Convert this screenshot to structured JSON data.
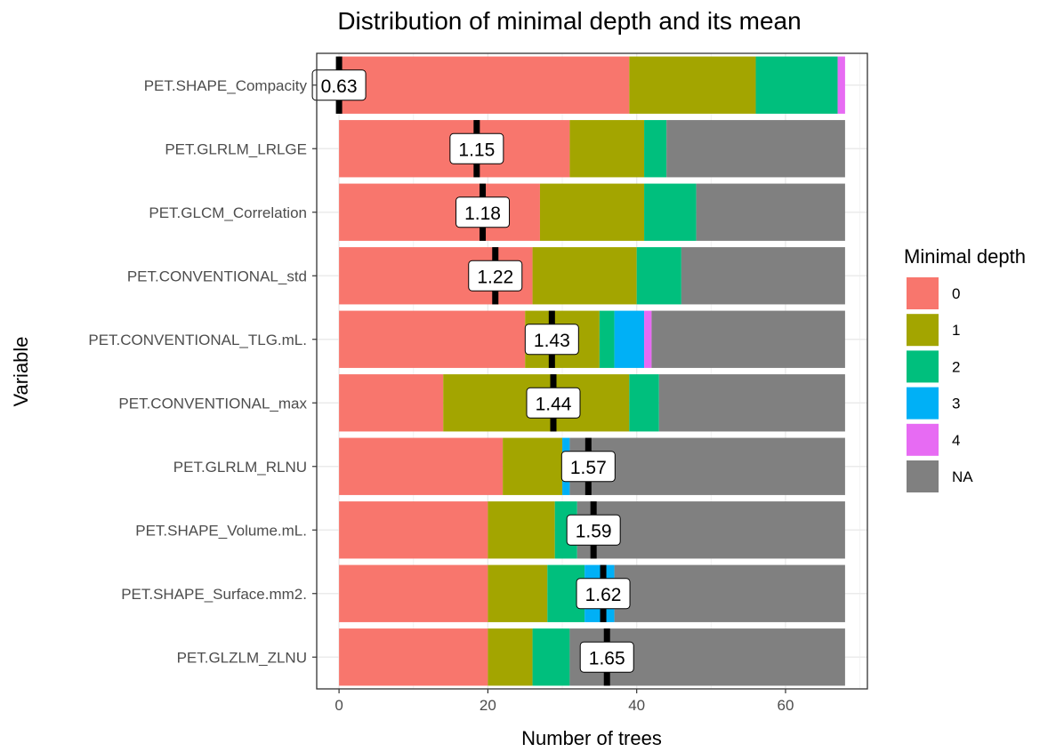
{
  "chart_data": {
    "type": "bar",
    "title": "Distribution of minimal depth and its mean",
    "xlabel": "Number of trees",
    "ylabel": "Variable",
    "xlim": [
      -3,
      71
    ],
    "xticks": [
      0,
      20,
      40,
      60
    ],
    "xtick_labels": [
      "0",
      "20",
      "40",
      "60"
    ],
    "grid": true,
    "legend": {
      "title": "Minimal depth",
      "position": "right",
      "entries": [
        "0",
        "1",
        "2",
        "3",
        "4",
        "NA"
      ]
    },
    "colors": {
      "0": "#F8766D",
      "1": "#A3A500",
      "2": "#00BF7D",
      "3": "#00B0F6",
      "4": "#E76BF3",
      "NA": "#808080"
    },
    "categories": [
      "PET.SHAPE_Compacity",
      "PET.GLRLM_LRLGE",
      "PET.GLCM_Correlation",
      "PET.CONVENTIONAL_std",
      "PET.CONVENTIONAL_TLG.mL.",
      "PET.CONVENTIONAL_max",
      "PET.GLRLM_RLNU",
      "PET.SHAPE_Volume.mL.",
      "PET.SHAPE_Surface.mm2.",
      "PET.GLZLM_ZLNU"
    ],
    "series": [
      {
        "name": "0",
        "values": [
          39,
          31,
          27,
          26,
          25,
          14,
          22,
          20,
          20,
          20
        ]
      },
      {
        "name": "1",
        "values": [
          17,
          10,
          14,
          14,
          10,
          25,
          8,
          9,
          8,
          6
        ]
      },
      {
        "name": "2",
        "values": [
          11,
          3,
          7,
          6,
          2,
          4,
          0,
          3,
          5,
          5
        ]
      },
      {
        "name": "3",
        "values": [
          0,
          0,
          0,
          0,
          4,
          0,
          1,
          0,
          4,
          0
        ]
      },
      {
        "name": "4",
        "values": [
          1,
          0,
          0,
          0,
          1,
          0,
          0,
          0,
          0,
          0
        ]
      },
      {
        "name": "NA",
        "values": [
          0,
          24,
          20,
          22,
          26,
          25,
          37,
          36,
          31,
          37
        ]
      }
    ],
    "mean_minimal_depth": [
      0.63,
      1.15,
      1.18,
      1.22,
      1.43,
      1.44,
      1.57,
      1.59,
      1.62,
      1.65
    ],
    "mean_labels": [
      "0.63",
      "1.15",
      "1.18",
      "1.22",
      "1.43",
      "1.44",
      "1.57",
      "1.59",
      "1.62",
      "1.65"
    ],
    "mean_marker_x": [
      0,
      18.5,
      19.3,
      21,
      28.6,
      28.8,
      33.5,
      34.2,
      35.5,
      36
    ]
  }
}
